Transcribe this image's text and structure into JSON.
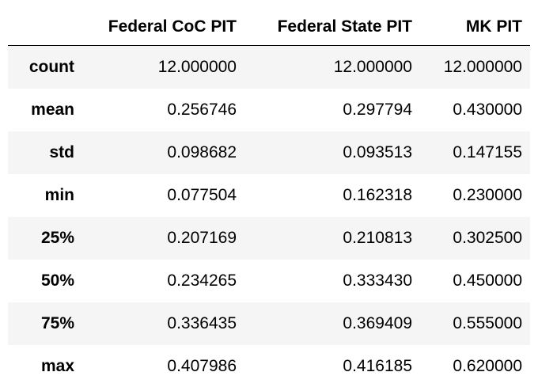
{
  "table": {
    "index_header": "",
    "columns": [
      "Federal CoC PIT",
      "Federal State PIT",
      "MK PIT"
    ],
    "rows": [
      {
        "label": "count",
        "values": [
          "12.000000",
          "12.000000",
          "12.000000"
        ]
      },
      {
        "label": "mean",
        "values": [
          "0.256746",
          "0.297794",
          "0.430000"
        ]
      },
      {
        "label": "std",
        "values": [
          "0.098682",
          "0.093513",
          "0.147155"
        ]
      },
      {
        "label": "min",
        "values": [
          "0.077504",
          "0.162318",
          "0.230000"
        ]
      },
      {
        "label": "25%",
        "values": [
          "0.207169",
          "0.210813",
          "0.302500"
        ]
      },
      {
        "label": "50%",
        "values": [
          "0.234265",
          "0.333430",
          "0.450000"
        ]
      },
      {
        "label": "75%",
        "values": [
          "0.336435",
          "0.369409",
          "0.555000"
        ]
      },
      {
        "label": "max",
        "values": [
          "0.407986",
          "0.416185",
          "0.620000"
        ]
      }
    ]
  },
  "colors": {
    "stripe": "#f5f5f5",
    "text": "#000000",
    "background": "#ffffff"
  }
}
